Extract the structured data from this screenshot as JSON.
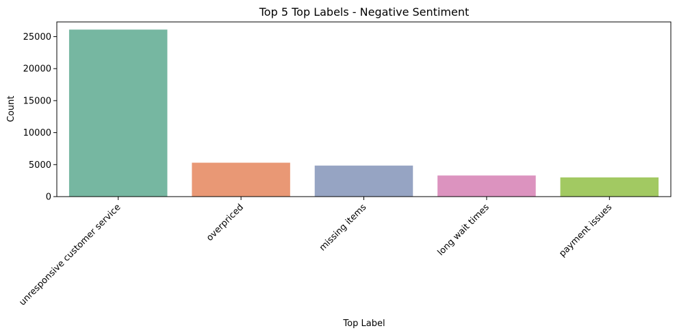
{
  "chart_data": {
    "type": "bar",
    "title": "Top 5 Top Labels - Negative Sentiment",
    "xlabel": "Top Label",
    "ylabel": "Count",
    "categories": [
      "unresponsive customer service",
      "overpriced",
      "missing items",
      "long wait times",
      "payment issues"
    ],
    "values": [
      26100,
      5300,
      4850,
      3300,
      3000
    ],
    "colors": [
      "#76b7a1",
      "#e99875",
      "#96a4c3",
      "#dc93bf",
      "#a2c962"
    ],
    "ylim": [
      0,
      27300
    ],
    "yticks": [
      0,
      5000,
      10000,
      15000,
      20000,
      25000
    ],
    "ytick_labels": [
      "0",
      "5000",
      "10000",
      "15000",
      "20000",
      "25000"
    ],
    "grid": false,
    "legend": "none"
  }
}
